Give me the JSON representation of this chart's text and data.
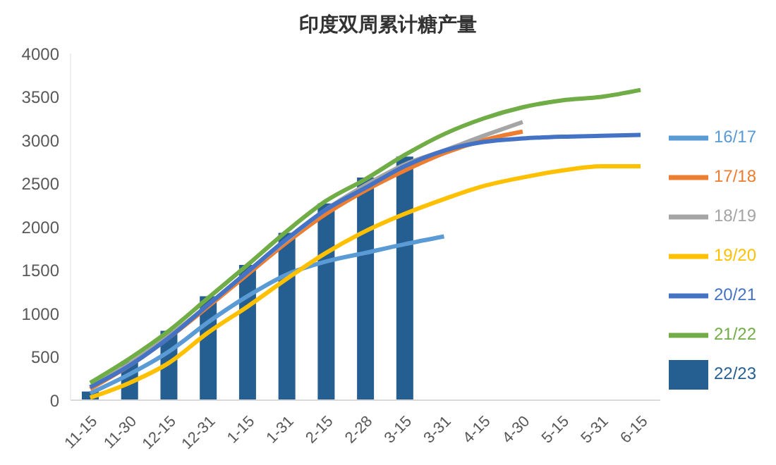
{
  "chart_data": {
    "type": "line",
    "title": "印度双周累计糖产量",
    "categories": [
      "11-15",
      "11-30",
      "12-15",
      "12-31",
      "1-15",
      "1-31",
      "2-15",
      "2-28",
      "3-15",
      "3-31",
      "4-15",
      "4-30",
      "5-15",
      "5-31",
      "6-15"
    ],
    "series": [
      {
        "name": "22/23",
        "type": "bar",
        "color": "#255e91",
        "values": [
          100,
          450,
          800,
          1200,
          1560,
          1930,
          2270,
          2570,
          2810,
          null,
          null,
          null,
          null,
          null,
          null
        ]
      },
      {
        "name": "16/17",
        "color": "#5b9bd5",
        "values": [
          80,
          300,
          560,
          900,
          1200,
          1450,
          1600,
          1700,
          1800,
          1890,
          null,
          null,
          null,
          null,
          null
        ]
      },
      {
        "name": "17/18",
        "color": "#ed7d31",
        "values": [
          130,
          400,
          720,
          1080,
          1450,
          1820,
          2150,
          2420,
          2650,
          2850,
          3000,
          3100,
          null,
          null,
          null
        ]
      },
      {
        "name": "18/19",
        "color": "#a5a5a5",
        "values": [
          150,
          420,
          740,
          1100,
          1480,
          1850,
          2200,
          2480,
          2720,
          2880,
          3050,
          3210,
          null,
          null,
          null
        ]
      },
      {
        "name": "19/20",
        "color": "#ffc000",
        "values": [
          30,
          200,
          430,
          780,
          1080,
          1400,
          1700,
          1950,
          2150,
          2320,
          2470,
          2570,
          2650,
          2700,
          2700
        ]
      },
      {
        "name": "20/21",
        "color": "#4472c4",
        "values": [
          150,
          400,
          720,
          1100,
          1480,
          1860,
          2200,
          2450,
          2700,
          2880,
          2980,
          3020,
          3040,
          3050,
          3060
        ]
      },
      {
        "name": "21/22",
        "color": "#70ad47",
        "values": [
          200,
          480,
          800,
          1180,
          1560,
          1950,
          2300,
          2550,
          2830,
          3070,
          3250,
          3380,
          3460,
          3500,
          3580
        ]
      }
    ],
    "ylim": [
      0,
      4000
    ],
    "yticks": [
      0,
      500,
      1000,
      1500,
      2000,
      2500,
      3000,
      3500,
      4000
    ],
    "grid": false,
    "legend": "right",
    "marker": "none",
    "line_style": "solid"
  }
}
